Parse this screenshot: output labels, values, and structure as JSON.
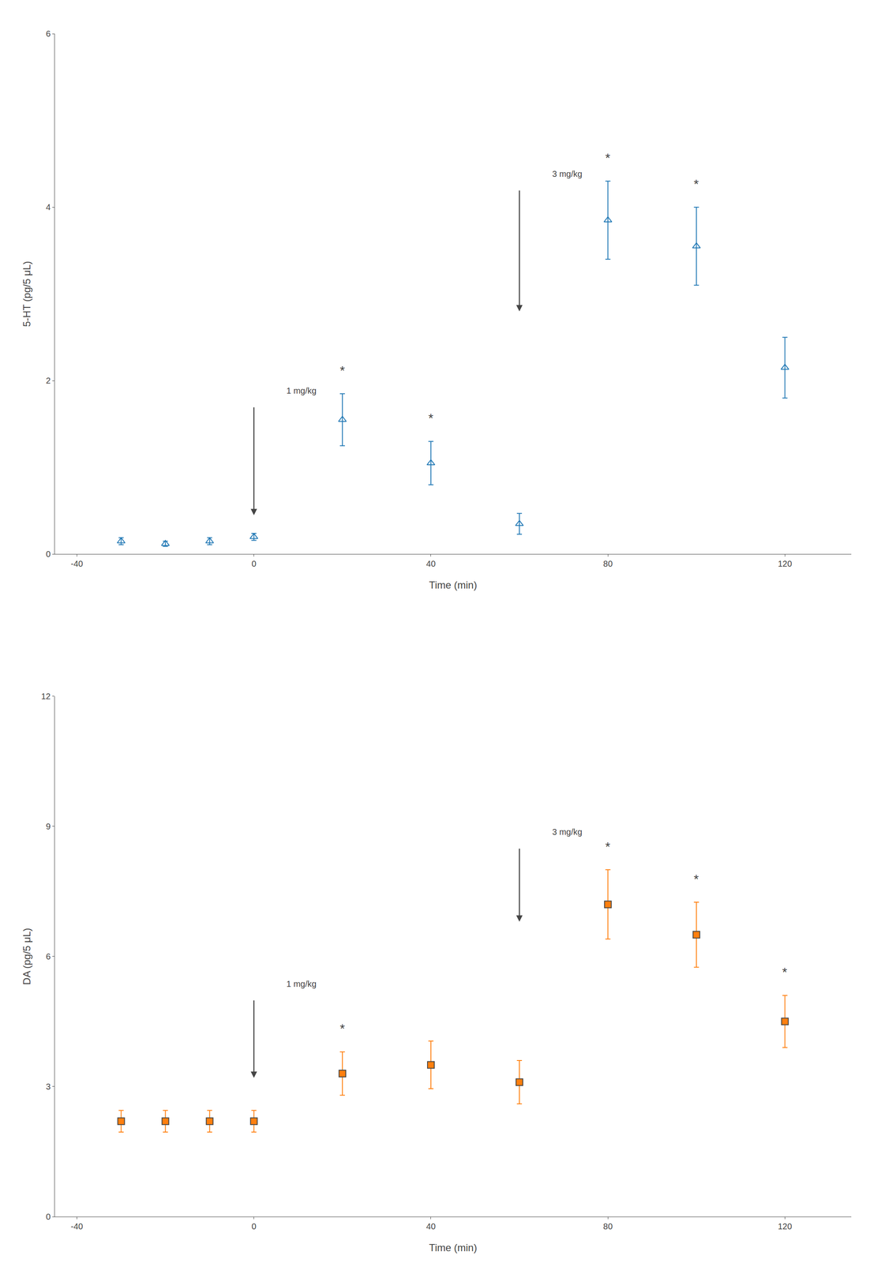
{
  "chart_data": [
    {
      "type": "scatter",
      "marker": "triangle-up-open",
      "grid": false,
      "xlabel": "Time (min)",
      "ylabel": "5-HT (pg/5 μL)",
      "x": [
        -30,
        -20,
        -10,
        0,
        20,
        40,
        60,
        80,
        100,
        120
      ],
      "values": [
        0.15,
        0.12,
        0.15,
        0.2,
        1.55,
        1.05,
        0.35,
        3.85,
        3.55,
        2.15
      ],
      "errors": [
        0.04,
        0.03,
        0.04,
        0.04,
        0.3,
        0.25,
        0.12,
        0.45,
        0.45,
        0.35
      ],
      "xlim": [
        -45,
        135
      ],
      "xticks": [
        -40,
        0,
        40,
        80,
        120
      ],
      "ylim": [
        0,
        6
      ],
      "yticks": [
        0,
        2,
        4,
        6
      ],
      "annotations": [
        {
          "text": "*",
          "x": 20
        },
        {
          "text": "*",
          "x": 40
        },
        {
          "text": "*",
          "x": 80
        },
        {
          "text": "*",
          "x": 100
        },
        {
          "text": "1 mg/kg",
          "x": 0,
          "arrow_tail": 1.7,
          "arrow_head": 0.45
        },
        {
          "text": "3 mg/kg",
          "x": 60,
          "arrow_tail": 4.2,
          "arrow_head": 2.8
        }
      ]
    },
    {
      "type": "scatter",
      "marker": "square",
      "grid": false,
      "xlabel": "Time (min)",
      "ylabel": "DA (pg/5 μL)",
      "x": [
        -30,
        -20,
        -10,
        0,
        20,
        40,
        60,
        80,
        100,
        120
      ],
      "values": [
        2.2,
        2.2,
        2.2,
        2.2,
        3.3,
        3.5,
        3.1,
        7.2,
        6.5,
        4.5
      ],
      "errors": [
        0.25,
        0.25,
        0.25,
        0.25,
        0.5,
        0.55,
        0.5,
        0.8,
        0.75,
        0.6
      ],
      "xlim": [
        -45,
        135
      ],
      "xticks": [
        -40,
        0,
        40,
        80,
        120
      ],
      "ylim": [
        0,
        12
      ],
      "yticks": [
        0,
        3,
        6,
        9,
        12
      ],
      "annotations": [
        {
          "text": "*",
          "x": 20
        },
        {
          "text": "*",
          "x": 80
        },
        {
          "text": "*",
          "x": 100
        },
        {
          "text": "*",
          "x": 120
        },
        {
          "text": "1 mg/kg",
          "x": 0,
          "arrow_tail": 5.0,
          "arrow_head": 3.2
        },
        {
          "text": "3 mg/kg",
          "x": 60,
          "arrow_tail": 8.5,
          "arrow_head": 6.8
        }
      ]
    }
  ]
}
